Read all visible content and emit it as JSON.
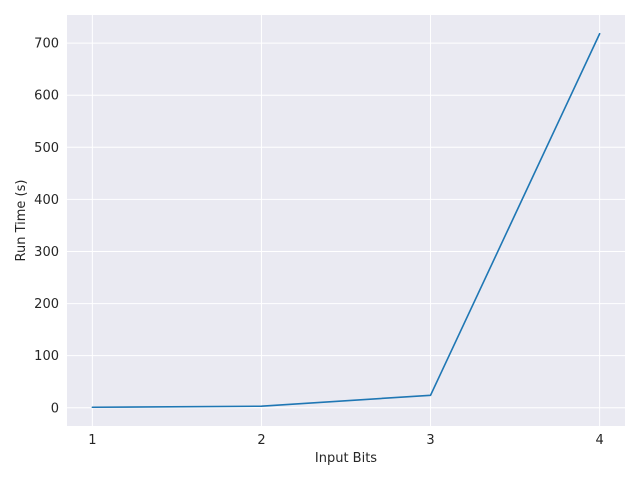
{
  "chart_data": {
    "type": "line",
    "title": "",
    "xlabel": "Input Bits",
    "ylabel": "Run Time (s)",
    "x": [
      1,
      2,
      3,
      4
    ],
    "series": [
      {
        "values": [
          1,
          3,
          24,
          718
        ]
      }
    ],
    "xlim": [
      0.85,
      4.15
    ],
    "ylim": [
      -35,
      754
    ],
    "xticks": [
      1,
      2,
      3,
      4
    ],
    "yticks": [
      0,
      100,
      200,
      300,
      400,
      500,
      600,
      700
    ],
    "grid": true,
    "legend": "none",
    "colors": {
      "background": "#EAEAF2",
      "grid": "#FFFFFF",
      "line": "#1F77B4"
    }
  }
}
